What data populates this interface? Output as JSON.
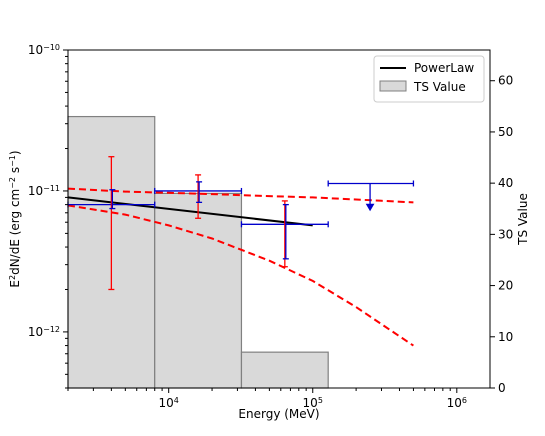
{
  "chart_data": {
    "type": "line",
    "xlabel": "Energy (MeV)",
    "ylabel": "E2dN/dE (erg cm-2 s-1)",
    "y2label": "TS Value",
    "x_scale": "log",
    "y_scale": "log",
    "xlim": [
      2000,
      1700000
    ],
    "ylim": [
      4e-13,
      1e-10
    ],
    "y2lim": [
      0,
      66
    ],
    "grid": false,
    "legend_position": "top-right",
    "colors": {
      "model": "#000000",
      "band": "#ff0000",
      "ts_fill": "#d9d9d9",
      "ts_edge": "#808080",
      "flux_blue": "#0000cc",
      "flux_red": "#ff0000"
    },
    "x_ticks": [
      {
        "value": 10000,
        "base": "10",
        "exp": "4"
      },
      {
        "value": 100000,
        "base": "10",
        "exp": "5"
      },
      {
        "value": 1000000,
        "base": "10",
        "exp": "6"
      }
    ],
    "y_ticks": [
      {
        "value": 1e-12,
        "base": "10",
        "exp": "−12"
      },
      {
        "value": 1e-11,
        "base": "10",
        "exp": "−11"
      },
      {
        "value": 1e-10,
        "base": "10",
        "exp": "−10"
      }
    ],
    "y2_ticks": [
      "0",
      "10",
      "20",
      "30",
      "40",
      "50",
      "60"
    ],
    "series": [
      {
        "name": "PowerLaw",
        "kind": "line",
        "x": [
          2000,
          100000
        ],
        "y": [
          9e-12,
          5.7e-12
        ]
      }
    ],
    "bands": [
      {
        "kind": "dashed",
        "x": [
          2000,
          5000,
          10000,
          20000,
          50000,
          100000,
          200000,
          500000
        ],
        "upper": [
          1.04e-11,
          9.9e-12,
          9.7e-12,
          9.5e-12,
          9.2e-12,
          9e-12,
          8.7e-12,
          8.3e-12
        ],
        "lower": [
          7.9e-12,
          6.8e-12,
          5.7e-12,
          4.6e-12,
          3.2e-12,
          2.3e-12,
          1.5e-12,
          8e-13
        ]
      }
    ],
    "ts_bars": [
      {
        "x0": 2000,
        "x1": 8000,
        "ts": 53
      },
      {
        "x0": 8000,
        "x1": 32000,
        "ts": 38
      },
      {
        "x0": 32000,
        "x1": 128000,
        "ts": 7
      }
    ],
    "flux_points": [
      {
        "x": 4000,
        "y": 8e-12,
        "x_low": 2000,
        "x_high": 8000,
        "y_low_blue": 7.5e-12,
        "y_high_blue": 1.02e-11,
        "y_low_red": 2e-12,
        "y_high_red": 1.75e-11,
        "upper_limit": false
      },
      {
        "x": 16000,
        "y": 1e-11,
        "x_low": 8000,
        "x_high": 32000,
        "y_low_blue": 8.3e-12,
        "y_high_blue": 1.16e-11,
        "y_low_red": 6.4e-12,
        "y_high_red": 1.3e-11,
        "upper_limit": false
      },
      {
        "x": 64000,
        "y": 5.8e-12,
        "x_low": 32000,
        "x_high": 128000,
        "y_low_blue": 3.3e-12,
        "y_high_blue": 8e-12,
        "y_low_red": 2.9e-12,
        "y_high_red": 8.5e-12,
        "upper_limit": false
      },
      {
        "x": 250000,
        "y": 1.13e-11,
        "x_low": 128000,
        "x_high": 500000,
        "upper_limit": true,
        "ul_to": 7.3e-12
      }
    ],
    "legend": [
      {
        "label": "PowerLaw",
        "swatch": "line"
      },
      {
        "label": "TS Value",
        "swatch": "box"
      }
    ]
  }
}
